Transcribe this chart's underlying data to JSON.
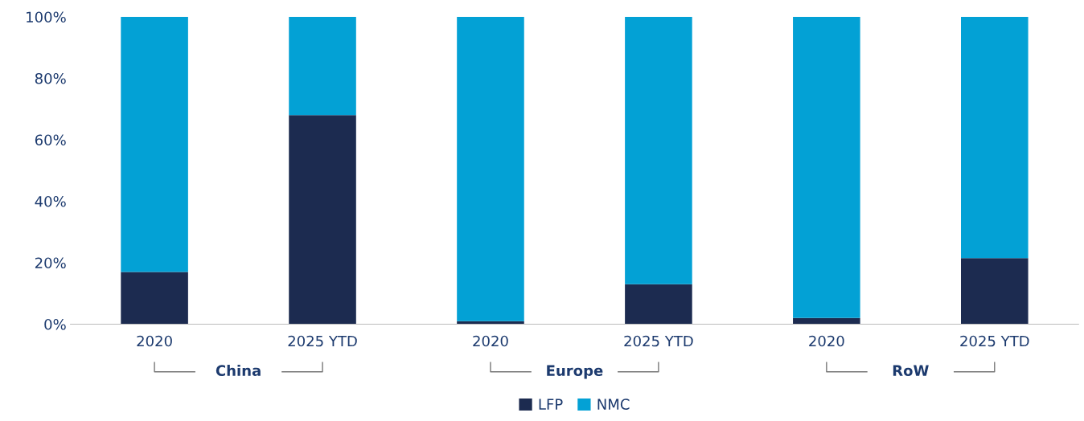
{
  "chart_data": {
    "type": "bar",
    "stacked": true,
    "categories": [
      "2020",
      "2025 YTD",
      "2020",
      "2025 YTD",
      "2020",
      "2025 YTD"
    ],
    "series": [
      {
        "name": "LFP",
        "color": "#1c2b50",
        "values": [
          17,
          68,
          1,
          13,
          2,
          21.5
        ]
      },
      {
        "name": "NMC",
        "color": "#03a1d5",
        "values": [
          83,
          32,
          99,
          87,
          98,
          78.5
        ]
      }
    ],
    "ylim": [
      0,
      100
    ],
    "yticks": [
      {
        "value": 0,
        "label": "0%"
      },
      {
        "value": 20,
        "label": "20%"
      },
      {
        "value": 40,
        "label": "40%"
      },
      {
        "value": 60,
        "label": "60%"
      },
      {
        "value": 80,
        "label": "80%"
      },
      {
        "value": 100,
        "label": "100%"
      }
    ],
    "annotations": [
      "China",
      "Europe",
      "RoW"
    ],
    "grid": false,
    "legend": "bottom"
  }
}
